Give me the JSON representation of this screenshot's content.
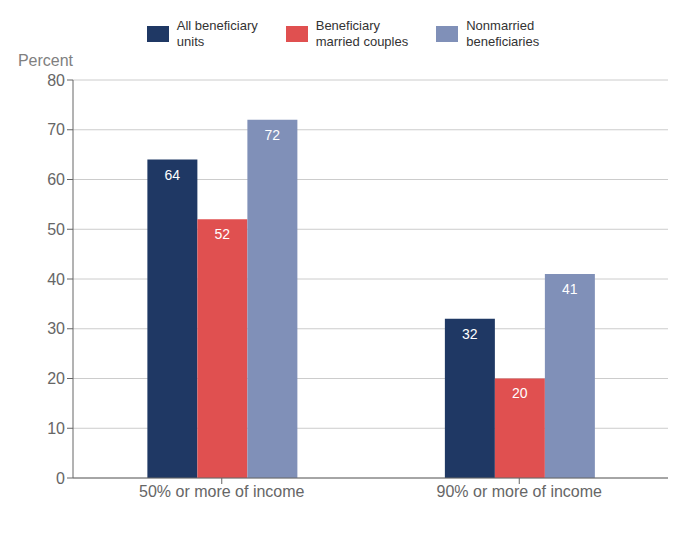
{
  "chart_data": {
    "type": "bar",
    "ylabel": "Percent",
    "categories": [
      "50% or more of income",
      "90% or more of income"
    ],
    "series": [
      {
        "name": "All beneficiary\nunits",
        "values": [
          64,
          32
        ],
        "color": "#1f3864"
      },
      {
        "name": "Beneficiary\nmarried couples",
        "values": [
          52,
          20
        ],
        "color": "#e05050"
      },
      {
        "name": "Nonmarried\nbeneficiaries",
        "values": [
          72,
          41
        ],
        "color": "#8090b8"
      }
    ],
    "ylim": [
      0,
      80
    ],
    "yticks": [
      0,
      10,
      20,
      30,
      40,
      50,
      60,
      70,
      80
    ],
    "grid": true,
    "legend": "top",
    "data_labels": true
  }
}
